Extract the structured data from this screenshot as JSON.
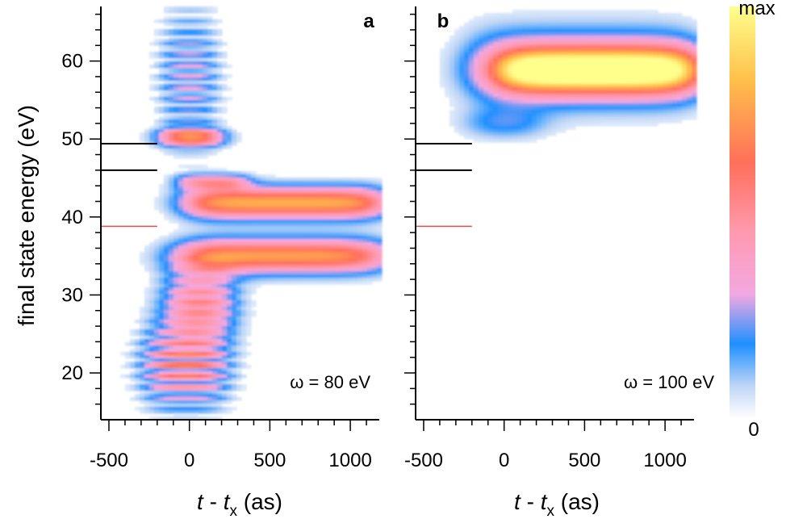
{
  "chart_data": {
    "type": "heatmap",
    "ylabel": "final state energy (eV)",
    "xlabel_italic_a": "t",
    "xlabel_sep": " - ",
    "xlabel_italic_b": "t",
    "xlabel_sub": "x",
    "xlabel_unit": " (as)",
    "xlim": [
      -550,
      1180
    ],
    "ylim": [
      14,
      67
    ],
    "xticks": [
      -500,
      0,
      500,
      1000
    ],
    "xtick_labels": [
      "-500",
      "0",
      "500",
      "1000"
    ],
    "yticks": [
      20,
      30,
      40,
      50,
      60
    ],
    "ytick_labels": [
      "20",
      "30",
      "40",
      "50",
      "60"
    ],
    "colorbar": {
      "max_label": "max",
      "min_label": "0",
      "colors": [
        "#ffffff",
        "#bcd4f6",
        "#1e90ff",
        "#f2a8e2",
        "#ff6f5a",
        "#ffbf4a",
        "#ffff8c"
      ]
    },
    "panels": [
      {
        "letter": "a",
        "omega_label": "ω = 80 eV",
        "reference_lines": [
          {
            "energy": 49.4,
            "x_end": -200,
            "color": "#000000"
          },
          {
            "energy": 46.0,
            "x_end": -200,
            "color": "#000000"
          },
          {
            "energy": 38.8,
            "x_end": -200,
            "color": "#e05050"
          }
        ],
        "blobs": [
          {
            "t0": -10,
            "t1": 1200,
            "rise": 70,
            "e0": 41.8,
            "ew": 1.4,
            "amp": 0.78,
            "fringe": 0
          },
          {
            "t0": -60,
            "t1": 350,
            "rise": 40,
            "e0": 44.5,
            "ew": 0.7,
            "amp": 0.42,
            "fringe": 0
          },
          {
            "t0": -40,
            "t1": 1200,
            "rise": 90,
            "e0": 35.0,
            "ew": 1.5,
            "amp": 0.74,
            "fringe": 0
          },
          {
            "t0": -120,
            "t1": 250,
            "rise": 60,
            "e0": 29.0,
            "ew": 3.2,
            "amp": 0.6,
            "fringe": 0.35
          },
          {
            "t0": -250,
            "t1": 200,
            "rise": 60,
            "e0": 21.0,
            "ew": 3.5,
            "amp": 0.74,
            "fringe": 0.7
          },
          {
            "t0": -160,
            "t1": 180,
            "rise": 50,
            "e0": 50.2,
            "ew": 0.8,
            "amp": 0.72,
            "fringe": 0
          },
          {
            "t0": -150,
            "t1": 150,
            "rise": 50,
            "e0": 58.0,
            "ew": 5.5,
            "amp": 0.38,
            "fringe": 0.75
          }
        ]
      },
      {
        "letter": "b",
        "omega_label": "ω = 100 eV",
        "reference_lines": [
          {
            "energy": 49.4,
            "x_end": -200,
            "color": "#000000"
          },
          {
            "energy": 46.0,
            "x_end": -200,
            "color": "#000000"
          },
          {
            "energy": 38.8,
            "x_end": -200,
            "color": "#e05050"
          }
        ],
        "blobs": [
          {
            "t0": -40,
            "t1": 1200,
            "rise": 80,
            "e0": 58.8,
            "ew": 2.1,
            "amp": 0.96,
            "fringe": 0
          },
          {
            "t0": -220,
            "t1": 1200,
            "rise": 90,
            "e0": 59.2,
            "ew": 3.6,
            "amp": 0.3,
            "fringe": 0
          },
          {
            "t0": -200,
            "t1": 200,
            "rise": 80,
            "e0": 52.0,
            "ew": 1.4,
            "amp": 0.2,
            "fringe": 0
          }
        ]
      }
    ]
  }
}
